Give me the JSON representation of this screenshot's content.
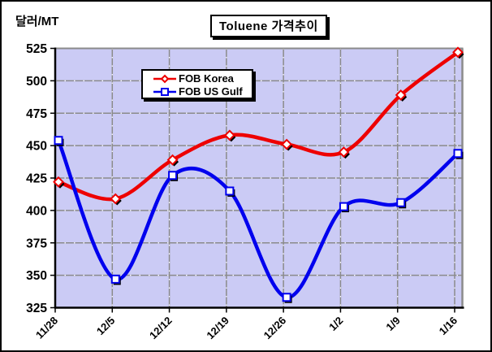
{
  "chart_data": {
    "type": "line",
    "smoothed": true,
    "title": "Toluene 가격추이",
    "unit_label": "달러/MT",
    "categories": [
      "11/28",
      "12/5",
      "12/12",
      "12/19",
      "12/26",
      "1/2",
      "1/9",
      "1/16"
    ],
    "series": [
      {
        "name": "FOB Korea",
        "color": "#ee0000",
        "marker": "diamond",
        "values": [
          422,
          409,
          439,
          458,
          451,
          445,
          489,
          522
        ]
      },
      {
        "name": "FOB US Gulf",
        "color": "#0000ee",
        "marker": "square",
        "values": [
          454,
          347,
          427,
          415,
          333,
          403,
          406,
          444
        ]
      }
    ],
    "ylim": [
      325,
      525
    ],
    "ytick_step": 25,
    "yticks": [
      325,
      350,
      375,
      400,
      425,
      450,
      475,
      500,
      525
    ],
    "grid": true,
    "legend_position": "inside-top",
    "colors": {
      "plot_bg": "#cbcbf5",
      "grid": "#8b8b8b",
      "axis": "#000000",
      "marker_fill": "#ffffff",
      "marker_shadow": "#000000"
    }
  }
}
